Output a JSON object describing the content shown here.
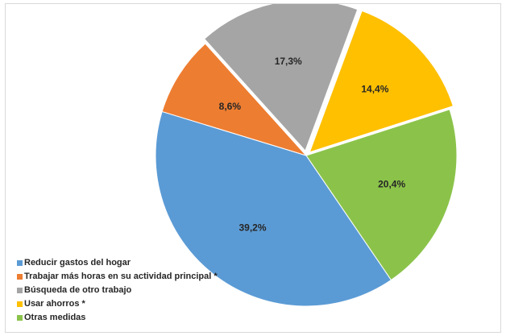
{
  "chart_data": {
    "type": "pie",
    "title": "",
    "categories": [
      "Reducir gastos del hogar",
      "Trabajar más horas en su actividad principal *",
      "Búsqueda de otro trabajo",
      "Usar ahorros  *",
      "Otras medidas"
    ],
    "values": [
      39.2,
      8.6,
      17.3,
      14.4,
      20.4
    ],
    "value_labels": [
      "39,2%",
      "8,6%",
      "17,3%",
      "14,4%",
      "20,4%"
    ],
    "colors": [
      "#5b9bd5",
      "#ed7d31",
      "#a5a5a5",
      "#ffc000",
      "#8bc34a"
    ],
    "legend": {
      "position": "bottom-left",
      "entries": [
        "Reducir gastos del hogar",
        "Trabajar más horas en su actividad principal *",
        "Búsqueda de otro trabajo",
        "Usar ahorros  *",
        "Otras medidas"
      ]
    },
    "start_category": "Otras medidas",
    "direction": "clockwise"
  }
}
